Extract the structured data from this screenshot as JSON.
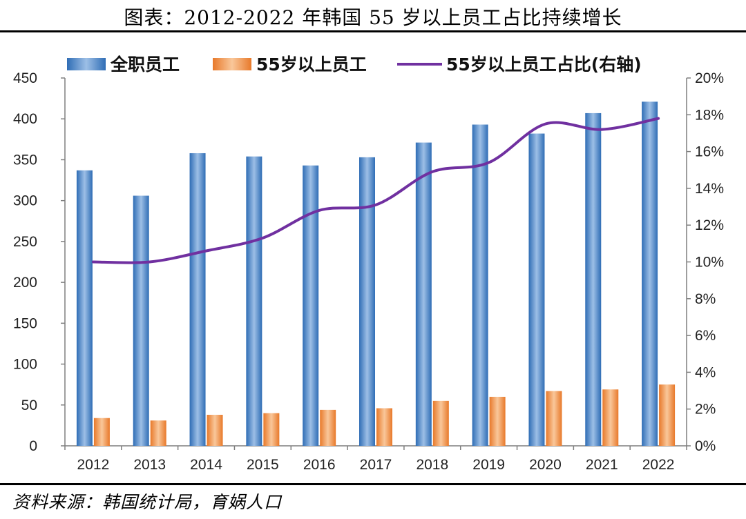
{
  "title": "图表：2012-2022 年韩国 55 岁以上员工占比持续增长",
  "source": "资料来源：韩国统计局，育娲人口",
  "chart_data": {
    "type": "bar",
    "categories": [
      "2012",
      "2013",
      "2014",
      "2015",
      "2016",
      "2017",
      "2018",
      "2019",
      "2020",
      "2021",
      "2022"
    ],
    "series": [
      {
        "name": "全职员工",
        "type": "bar",
        "axis": "left",
        "color": "#4a86c8",
        "values": [
          337,
          306,
          358,
          354,
          343,
          353,
          371,
          393,
          382,
          407,
          421
        ]
      },
      {
        "name": "55岁以上员工",
        "type": "bar",
        "axis": "left",
        "color": "#f0934a",
        "values": [
          34,
          31,
          38,
          40,
          44,
          46,
          55,
          60,
          67,
          69,
          75
        ]
      },
      {
        "name": "55岁以上员工占比(右轴)",
        "type": "line",
        "axis": "right",
        "color": "#7030a0",
        "values": [
          10.0,
          10.0,
          10.6,
          11.3,
          12.8,
          13.1,
          14.9,
          15.4,
          17.5,
          17.2,
          17.8
        ]
      }
    ],
    "ylim_left": [
      0,
      450
    ],
    "yticks_left": [
      "0",
      "50",
      "100",
      "150",
      "200",
      "250",
      "300",
      "350",
      "400",
      "450"
    ],
    "ylim_right": [
      0,
      20
    ],
    "yticks_right": [
      "0%",
      "2%",
      "4%",
      "6%",
      "8%",
      "10%",
      "12%",
      "14%",
      "16%",
      "18%",
      "20%"
    ],
    "grid": false,
    "legend_position": "top"
  }
}
